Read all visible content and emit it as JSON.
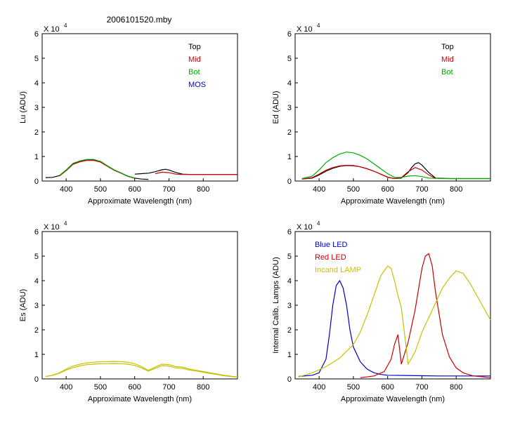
{
  "page": {
    "title": "2006101520.mby"
  },
  "colors": {
    "black": "#000000",
    "red": "#cc0000",
    "green": "#00aa00",
    "blue": "#0000cc",
    "olive": "#c8c000"
  },
  "chart_data": [
    {
      "id": "lu",
      "type": "line",
      "ylabel": "Lu (ADU)",
      "xlabel": "Approximate Wavelength (nm)",
      "multiplier": "X 10",
      "exponent": "4",
      "xlim": [
        330,
        900
      ],
      "ylim": [
        0,
        6
      ],
      "xticks": [
        400,
        500,
        600,
        700,
        800
      ],
      "yticks": [
        0,
        1,
        2,
        3,
        4,
        5,
        6
      ],
      "legend": [
        {
          "label": "Top",
          "color": "#000000"
        },
        {
          "label": "Mid",
          "color": "#cc0000"
        },
        {
          "label": "Bot",
          "color": "#00aa00"
        },
        {
          "label": "MOS",
          "color": "#0000cc"
        }
      ],
      "series": [
        {
          "name": "Top",
          "color": "#000000",
          "x": [
            340,
            360,
            380,
            400,
            420,
            440,
            460,
            480,
            500,
            520,
            540,
            560,
            580,
            600,
            620,
            640
          ],
          "y": [
            0.14,
            0.15,
            0.22,
            0.45,
            0.7,
            0.8,
            0.85,
            0.86,
            0.8,
            0.62,
            0.45,
            0.33,
            0.2,
            0.12,
            0.08,
            0.07
          ]
        },
        {
          "name": "Top2",
          "color": "#000000",
          "x": [
            600,
            620,
            640,
            660,
            680,
            690,
            700,
            720,
            740,
            760,
            800,
            850,
            900
          ],
          "y": [
            0.28,
            0.3,
            0.32,
            0.38,
            0.46,
            0.48,
            0.45,
            0.35,
            0.28,
            0.27,
            0.27,
            0.27,
            0.27
          ]
        },
        {
          "name": "Mid",
          "color": "#cc0000",
          "x": [
            380,
            400,
            420,
            440,
            460,
            480,
            500,
            520,
            540,
            560,
            580,
            600
          ],
          "y": [
            0.2,
            0.42,
            0.68,
            0.78,
            0.84,
            0.84,
            0.77,
            0.6,
            0.44,
            0.32,
            0.19,
            0.11
          ]
        },
        {
          "name": "Mid2",
          "color": "#cc0000",
          "x": [
            660,
            680,
            700,
            720,
            740,
            780,
            840,
            900
          ],
          "y": [
            0.3,
            0.36,
            0.34,
            0.28,
            0.27,
            0.27,
            0.27,
            0.27
          ]
        },
        {
          "name": "Bot",
          "color": "#00aa00",
          "x": [
            380,
            400,
            420,
            440,
            460,
            480,
            500,
            520,
            540,
            560,
            580,
            600
          ],
          "y": [
            0.22,
            0.45,
            0.72,
            0.82,
            0.88,
            0.88,
            0.8,
            0.62,
            0.46,
            0.33,
            0.2,
            0.12
          ]
        }
      ]
    },
    {
      "id": "ed",
      "type": "line",
      "ylabel": "Ed  (ADU)",
      "xlabel": "Approximate Wavelength (nm)",
      "multiplier": "X 10",
      "exponent": "4",
      "xlim": [
        330,
        900
      ],
      "ylim": [
        0,
        6
      ],
      "xticks": [
        400,
        500,
        600,
        700,
        800
      ],
      "yticks": [
        0,
        1,
        2,
        3,
        4,
        5,
        6
      ],
      "legend": [
        {
          "label": "Top",
          "color": "#000000"
        },
        {
          "label": "Mid",
          "color": "#cc0000"
        },
        {
          "label": "Bot",
          "color": "#00aa00"
        }
      ],
      "series": [
        {
          "name": "Top",
          "color": "#000000",
          "x": [
            350,
            380,
            400,
            420,
            440,
            460,
            480,
            500,
            520,
            540,
            560,
            580,
            600,
            620,
            640,
            660,
            670,
            680,
            690,
            700,
            720,
            740,
            780,
            850,
            900
          ],
          "y": [
            0.08,
            0.12,
            0.25,
            0.4,
            0.52,
            0.6,
            0.63,
            0.62,
            0.58,
            0.5,
            0.4,
            0.28,
            0.16,
            0.1,
            0.12,
            0.35,
            0.55,
            0.7,
            0.75,
            0.65,
            0.35,
            0.12,
            0.1,
            0.1,
            0.1
          ]
        },
        {
          "name": "Mid",
          "color": "#cc0000",
          "x": [
            350,
            380,
            400,
            420,
            440,
            460,
            480,
            500,
            520,
            540,
            560,
            580,
            600,
            620,
            640,
            660,
            680,
            700,
            720,
            740
          ],
          "y": [
            0.08,
            0.14,
            0.28,
            0.44,
            0.55,
            0.62,
            0.64,
            0.63,
            0.58,
            0.5,
            0.4,
            0.28,
            0.15,
            0.1,
            0.14,
            0.38,
            0.55,
            0.45,
            0.25,
            0.1
          ]
        },
        {
          "name": "Bot",
          "color": "#00aa00",
          "x": [
            350,
            380,
            400,
            420,
            440,
            460,
            480,
            500,
            520,
            540,
            560,
            580,
            600,
            620,
            640,
            660,
            680,
            700,
            720,
            760,
            820,
            900
          ],
          "y": [
            0.1,
            0.2,
            0.45,
            0.75,
            0.95,
            1.1,
            1.18,
            1.15,
            1.05,
            0.9,
            0.7,
            0.5,
            0.3,
            0.15,
            0.15,
            0.2,
            0.22,
            0.18,
            0.12,
            0.1,
            0.1,
            0.1
          ]
        }
      ]
    },
    {
      "id": "es",
      "type": "line",
      "ylabel": "Es  (ADU)",
      "xlabel": "Approximate Wavelength (nm)",
      "multiplier": "X 10",
      "exponent": "4",
      "xlim": [
        330,
        900
      ],
      "ylim": [
        0,
        6
      ],
      "xticks": [
        400,
        500,
        600,
        700,
        800
      ],
      "yticks": [
        0,
        1,
        2,
        3,
        4,
        5,
        6
      ],
      "legend": [],
      "series": [
        {
          "name": "Es",
          "color": "#c8c000",
          "x": [
            340,
            360,
            380,
            400,
            420,
            440,
            460,
            480,
            500,
            520,
            540,
            560,
            580,
            600,
            620,
            640,
            660,
            680,
            700,
            720,
            740,
            760,
            780,
            800,
            820,
            840,
            860,
            880,
            900
          ],
          "y": [
            0.1,
            0.15,
            0.25,
            0.4,
            0.52,
            0.6,
            0.65,
            0.68,
            0.7,
            0.7,
            0.71,
            0.7,
            0.68,
            0.62,
            0.5,
            0.35,
            0.48,
            0.6,
            0.58,
            0.5,
            0.48,
            0.4,
            0.35,
            0.3,
            0.25,
            0.2,
            0.15,
            0.11,
            0.08
          ]
        },
        {
          "name": "Es2",
          "color": "#c8c000",
          "x": [
            340,
            360,
            380,
            400,
            420,
            440,
            460,
            480,
            500,
            520,
            540,
            560,
            580,
            600,
            620,
            640,
            660,
            680,
            700,
            720,
            740,
            760,
            780,
            800,
            820,
            840,
            860,
            880,
            900
          ],
          "y": [
            0.1,
            0.14,
            0.23,
            0.36,
            0.46,
            0.53,
            0.58,
            0.6,
            0.62,
            0.62,
            0.63,
            0.62,
            0.6,
            0.55,
            0.45,
            0.32,
            0.43,
            0.54,
            0.52,
            0.45,
            0.43,
            0.36,
            0.32,
            0.27,
            0.22,
            0.18,
            0.13,
            0.1,
            0.07
          ]
        }
      ]
    },
    {
      "id": "cal",
      "type": "line",
      "ylabel": "Internal Calib. Lamps (ADU)",
      "xlabel": "Approximate Wavelength (nm)",
      "multiplier": "X 10",
      "exponent": "4",
      "xlim": [
        330,
        900
      ],
      "ylim": [
        0,
        6
      ],
      "xticks": [
        400,
        500,
        600,
        700,
        800
      ],
      "yticks": [
        0,
        1,
        2,
        3,
        4,
        5,
        6
      ],
      "legend_position": "top-left",
      "legend": [
        {
          "label": "Blue LED",
          "color": "#0000cc"
        },
        {
          "label": "Red LED",
          "color": "#cc0000"
        },
        {
          "label": "Incand LAMP",
          "color": "#c8c000"
        }
      ],
      "series": [
        {
          "name": "Blue LED",
          "color": "#0000cc",
          "x": [
            340,
            380,
            400,
            420,
            430,
            440,
            450,
            460,
            470,
            480,
            490,
            500,
            520,
            540,
            560,
            580,
            600,
            650,
            700,
            750,
            800,
            850,
            900
          ],
          "y": [
            0.1,
            0.15,
            0.25,
            0.8,
            1.8,
            3.0,
            3.8,
            4.0,
            3.7,
            3.0,
            2.0,
            1.3,
            0.7,
            0.4,
            0.25,
            0.18,
            0.15,
            0.14,
            0.13,
            0.12,
            0.12,
            0.12,
            0.12
          ]
        },
        {
          "name": "Red LED",
          "color": "#cc0000",
          "x": [
            520,
            560,
            590,
            610,
            620,
            630,
            640,
            660,
            680,
            700,
            710,
            720,
            730,
            740,
            760,
            780,
            800,
            820,
            850,
            880,
            900
          ],
          "y": [
            0.05,
            0.12,
            0.3,
            0.8,
            1.4,
            1.8,
            0.6,
            1.5,
            2.8,
            4.5,
            5.0,
            5.1,
            4.6,
            3.5,
            1.8,
            0.9,
            0.45,
            0.25,
            0.12,
            0.08,
            0.05
          ]
        },
        {
          "name": "Incand LAMP",
          "color": "#c8c000",
          "x": [
            340,
            380,
            420,
            460,
            500,
            520,
            540,
            560,
            580,
            600,
            610,
            620,
            630,
            640,
            660,
            680,
            700,
            720,
            740,
            760,
            780,
            800,
            820,
            840,
            860,
            880,
            900
          ],
          "y": [
            0.08,
            0.25,
            0.5,
            0.85,
            1.4,
            1.9,
            2.6,
            3.4,
            4.2,
            4.6,
            4.5,
            4.0,
            3.4,
            2.9,
            0.6,
            1.1,
            1.9,
            2.5,
            3.1,
            3.7,
            4.1,
            4.4,
            4.3,
            3.9,
            3.4,
            2.9,
            2.4
          ]
        }
      ]
    }
  ]
}
